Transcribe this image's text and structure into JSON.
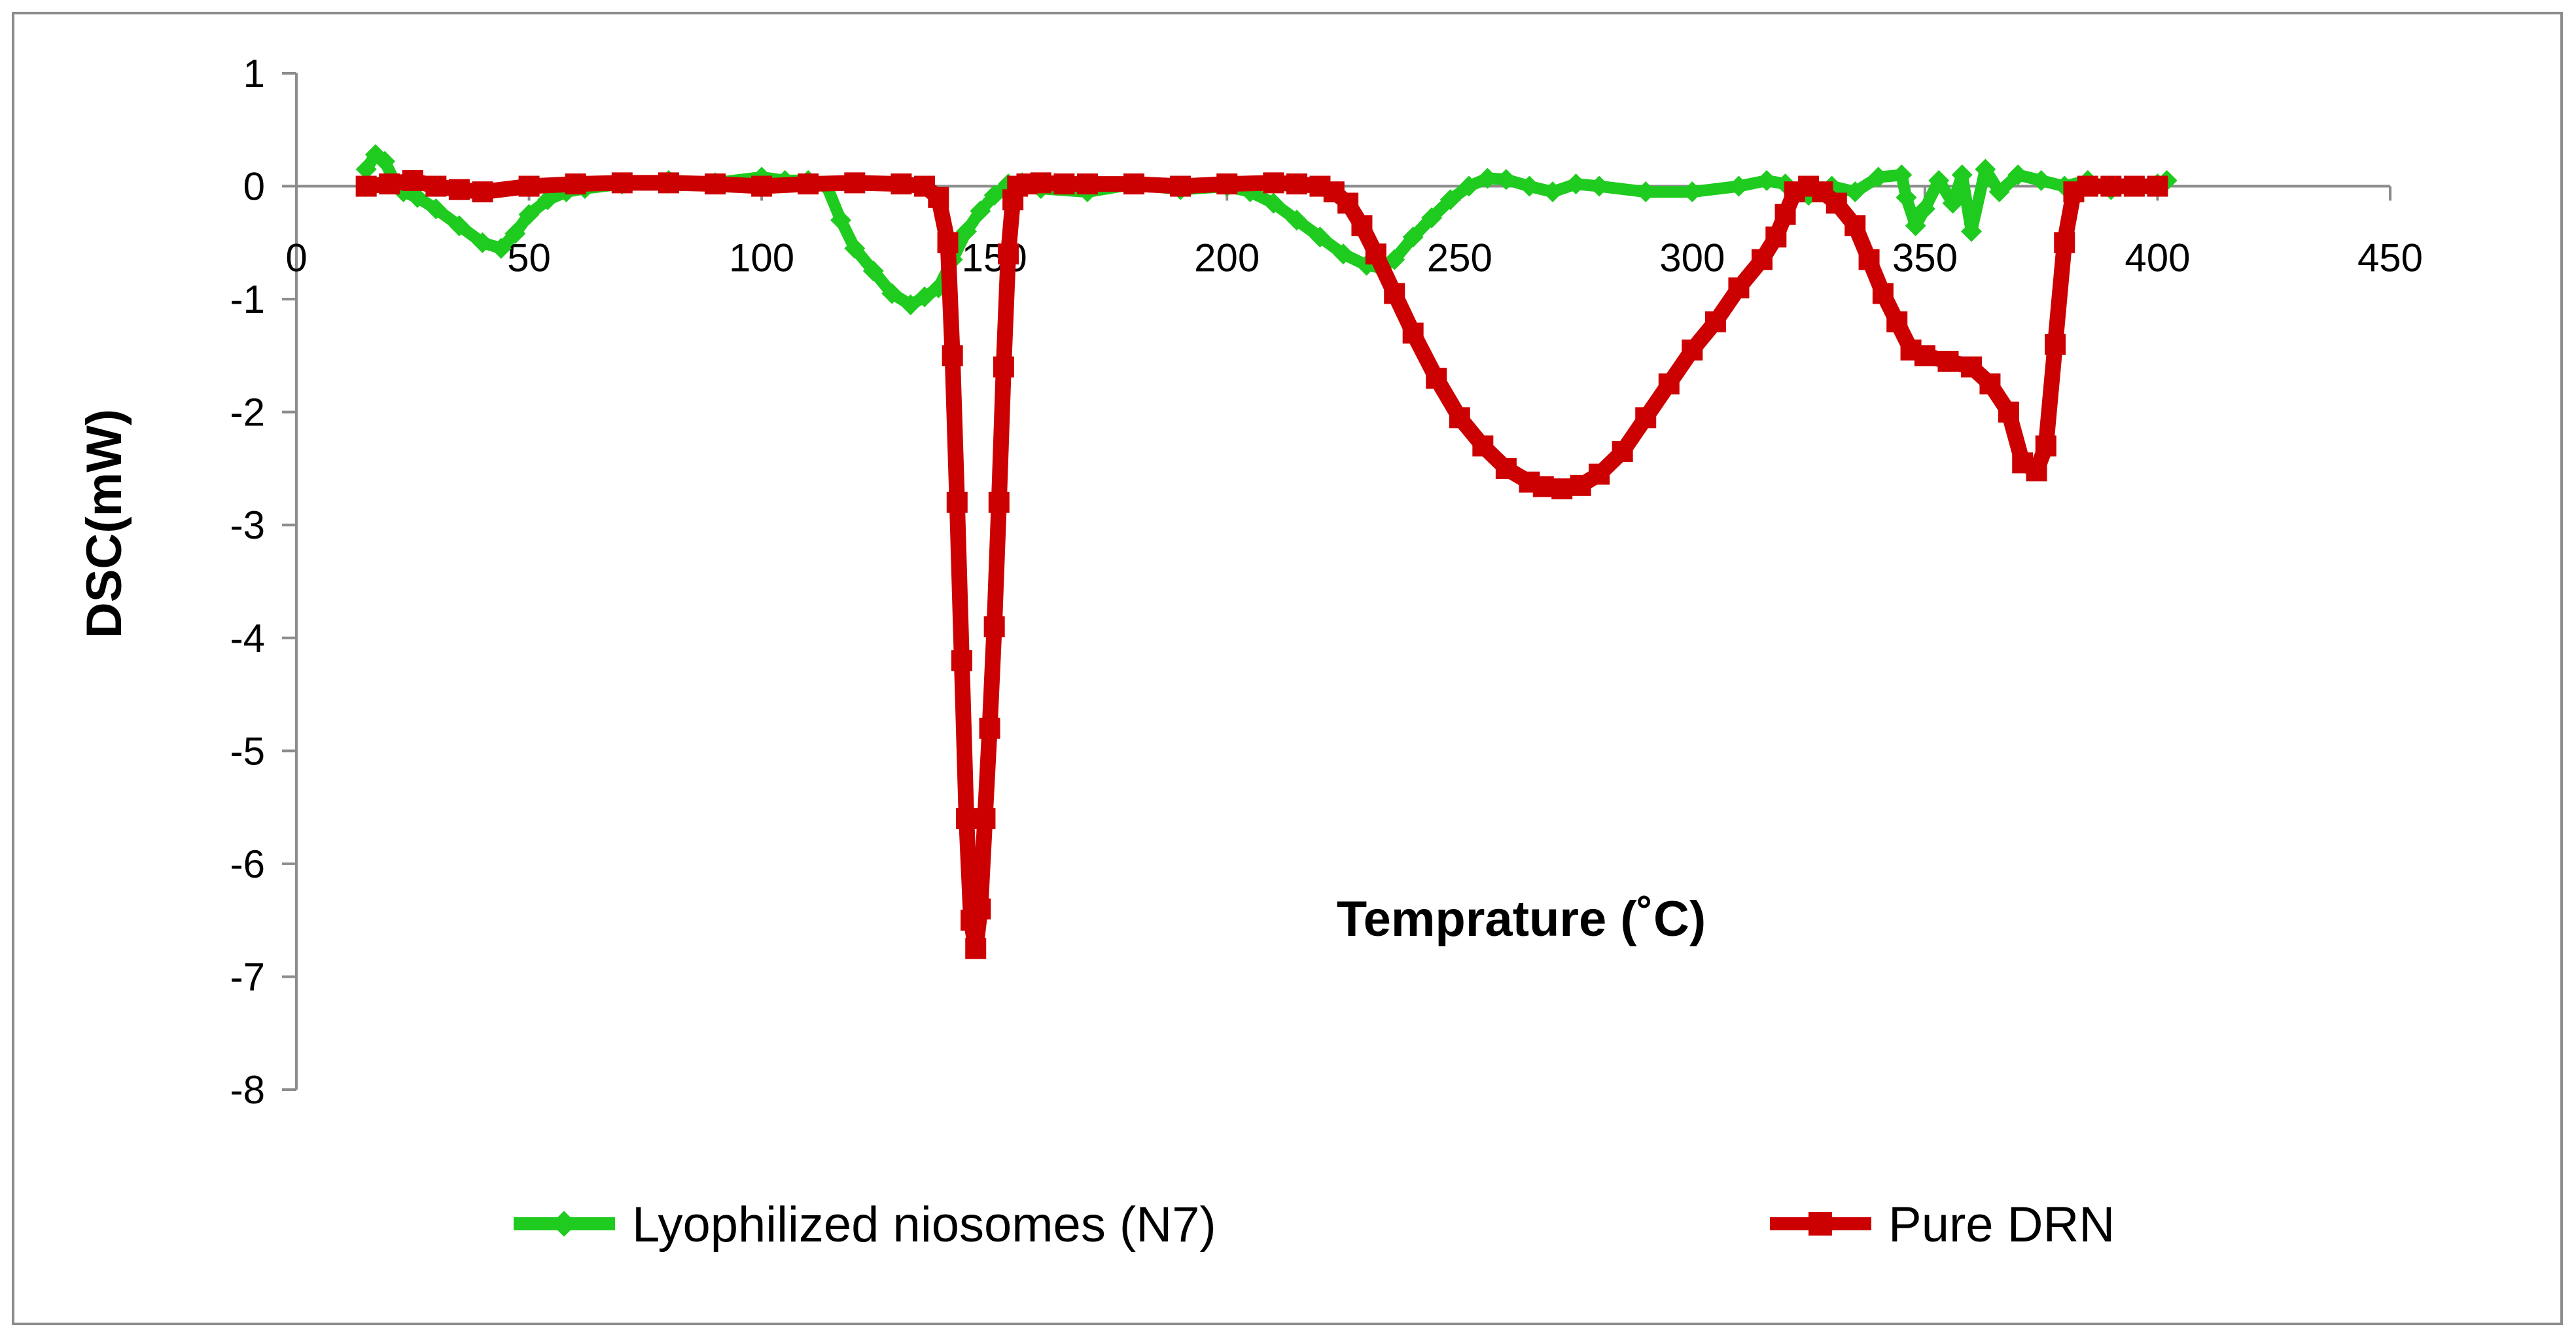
{
  "chart_data": {
    "type": "line",
    "title": "",
    "xlabel": "Temprature (˚C)",
    "ylabel": "DSC(mW)",
    "xlim": [
      0,
      450
    ],
    "ylim": [
      -8,
      1
    ],
    "xticks": [
      0,
      50,
      100,
      150,
      200,
      250,
      300,
      350,
      400,
      450
    ],
    "yticks": [
      1,
      0,
      -1,
      -2,
      -3,
      -4,
      -5,
      -6,
      -7,
      -8
    ],
    "xtick_labels": [
      "0",
      "50",
      "100",
      "150",
      "200",
      "250",
      "300",
      "350",
      "400",
      "450"
    ],
    "ytick_labels": [
      "1",
      "0",
      "-1",
      "-2",
      "-3",
      "-4",
      "-5",
      "-6",
      "-7",
      "-8"
    ],
    "grid": false,
    "legend_position": "bottom",
    "series": [
      {
        "name": "Lyophilized niosomes (N7)",
        "color": "#1ECB1E",
        "marker": "diamond",
        "x": [
          15,
          17,
          19,
          21,
          23,
          26,
          30,
          35,
          40,
          44,
          47,
          50,
          54,
          58,
          62,
          70,
          80,
          90,
          100,
          105,
          110,
          114,
          117,
          120,
          124,
          128,
          132,
          135,
          138,
          141,
          144,
          147,
          150,
          153,
          156,
          160,
          170,
          180,
          190,
          200,
          205,
          210,
          215,
          220,
          225,
          230,
          233,
          236,
          240,
          244,
          248,
          252,
          256,
          260,
          265,
          270,
          275,
          280,
          290,
          300,
          310,
          316,
          320,
          325,
          330,
          335,
          340,
          345,
          346,
          348,
          350,
          353,
          356,
          358,
          360,
          363,
          366,
          370,
          375,
          380,
          385,
          390,
          395,
          400,
          402
        ],
        "values": [
          0.15,
          0.28,
          0.22,
          0.05,
          -0.05,
          -0.1,
          -0.2,
          -0.35,
          -0.5,
          -0.55,
          -0.42,
          -0.25,
          -0.12,
          -0.05,
          -0.02,
          0.02,
          0.05,
          0.03,
          0.08,
          0.05,
          0.05,
          0.0,
          -0.3,
          -0.55,
          -0.75,
          -0.95,
          -1.05,
          -0.98,
          -0.9,
          -0.65,
          -0.4,
          -0.22,
          -0.08,
          0.02,
          0.03,
          -0.02,
          -0.05,
          0.02,
          -0.03,
          0.0,
          -0.05,
          -0.15,
          -0.3,
          -0.45,
          -0.6,
          -0.7,
          -0.72,
          -0.65,
          -0.45,
          -0.28,
          -0.12,
          0.0,
          0.07,
          0.06,
          0.0,
          -0.05,
          0.02,
          0.0,
          -0.05,
          -0.05,
          0.0,
          0.05,
          0.02,
          -0.08,
          0.0,
          -0.05,
          0.08,
          0.1,
          -0.1,
          -0.35,
          -0.2,
          0.05,
          -0.15,
          0.1,
          -0.4,
          0.15,
          -0.05,
          0.1,
          0.05,
          0.0,
          0.05,
          -0.03,
          0.0,
          0.02,
          0.05
        ]
      },
      {
        "name": "Pure DRN",
        "color": "#CC0000",
        "marker": "square",
        "x": [
          15,
          20,
          25,
          30,
          35,
          40,
          50,
          60,
          70,
          80,
          90,
          100,
          110,
          120,
          130,
          135,
          138,
          140,
          141,
          142,
          143,
          144,
          145,
          146,
          147,
          148,
          149,
          150,
          151,
          152,
          153,
          154,
          155,
          157,
          160,
          165,
          170,
          180,
          190,
          200,
          210,
          215,
          220,
          223,
          226,
          229,
          232,
          236,
          240,
          245,
          250,
          255,
          260,
          265,
          268,
          272,
          276,
          280,
          285,
          290,
          295,
          300,
          305,
          310,
          315,
          318,
          320,
          322,
          325,
          328,
          331,
          335,
          338,
          341,
          344,
          347,
          350,
          355,
          360,
          364,
          368,
          371,
          374,
          376,
          378,
          380,
          382,
          385,
          390,
          395,
          400
        ],
        "values": [
          0.0,
          0.02,
          0.05,
          0.0,
          -0.03,
          -0.05,
          0.0,
          0.02,
          0.03,
          0.03,
          0.02,
          0.0,
          0.02,
          0.03,
          0.02,
          0.0,
          -0.1,
          -0.5,
          -1.5,
          -2.8,
          -4.2,
          -5.6,
          -6.5,
          -6.75,
          -6.4,
          -5.6,
          -4.8,
          -3.9,
          -2.8,
          -1.6,
          -0.6,
          -0.12,
          0.0,
          0.02,
          0.03,
          0.02,
          0.02,
          0.02,
          0.0,
          0.02,
          0.03,
          0.02,
          0.0,
          -0.05,
          -0.15,
          -0.35,
          -0.6,
          -0.95,
          -1.3,
          -1.7,
          -2.05,
          -2.3,
          -2.5,
          -2.62,
          -2.66,
          -2.68,
          -2.65,
          -2.55,
          -2.35,
          -2.05,
          -1.75,
          -1.45,
          -1.2,
          -0.9,
          -0.65,
          -0.45,
          -0.25,
          -0.05,
          0.0,
          -0.05,
          -0.15,
          -0.35,
          -0.65,
          -0.95,
          -1.2,
          -1.45,
          -1.5,
          -1.55,
          -1.6,
          -1.75,
          -2.0,
          -2.45,
          -2.52,
          -2.3,
          -1.4,
          -0.5,
          -0.05,
          0.0,
          0.0,
          0.0,
          0.0
        ]
      }
    ]
  }
}
